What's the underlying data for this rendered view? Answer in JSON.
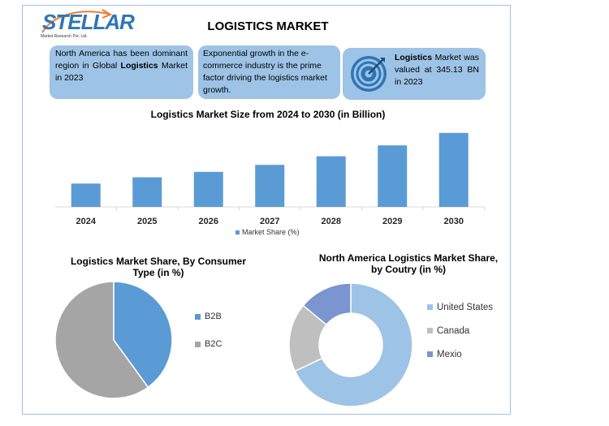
{
  "header": {
    "logo_text": "STELLAR",
    "logo_subtitle": "Market Research Pvt. Ltd.",
    "title": "LOGISTICS MARKET"
  },
  "info_boxes": {
    "box1": {
      "pre": "North America has been dominant region in Global ",
      "bold": "Logistics",
      "post": " Market in 2023"
    },
    "box2": {
      "text": "Exponential growth in the e-commerce industry is the prime factor driving the logistics market growth."
    },
    "box3": {
      "bold": "Logistics",
      "post": " Market was valued at 345.13 BN in 2023",
      "icon": "target-icon"
    }
  },
  "colors": {
    "bar": "#5b9bd5",
    "b2b": "#5b9bd5",
    "b2c": "#a5a5a5",
    "us": "#9dc3e6",
    "canada": "#bfbfbf",
    "mexico": "#7a95cf",
    "box": "#9dc3e6"
  },
  "chart_data": [
    {
      "type": "bar",
      "title": "Logistics Market Size from 2024 to 2030 (in Billion)",
      "categories": [
        "2024",
        "2025",
        "2026",
        "2027",
        "2028",
        "2029",
        "2030"
      ],
      "series": [
        {
          "name": "Market Share (%)",
          "values": [
            30,
            38,
            45,
            54,
            65,
            79,
            95
          ]
        }
      ],
      "ylim": [
        0,
        100
      ],
      "grid": false,
      "legend": "bottom"
    },
    {
      "type": "pie",
      "title_line1": "Logistics Market Share, By Consumer",
      "title_line2": "Type (in %)",
      "labels": [
        "B2B",
        "B2C"
      ],
      "values": [
        40,
        60
      ],
      "legend": "right"
    },
    {
      "type": "pie",
      "subtype": "donut",
      "title_line1": "North America Logistics Market Share,",
      "title_line2": "by Coutry (in %)",
      "labels": [
        "United States",
        "Canada",
        "Mexio"
      ],
      "values": [
        68,
        18,
        14
      ],
      "legend": "right"
    }
  ]
}
